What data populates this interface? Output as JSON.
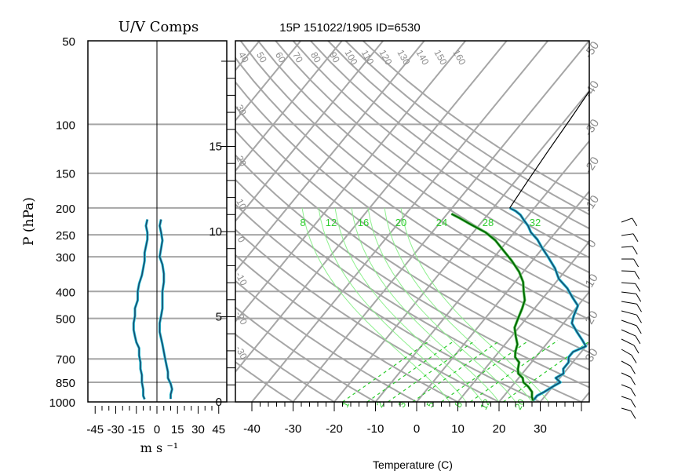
{
  "chart_data": [
    {
      "type": "line",
      "title": "U/V Comps",
      "xlabel": "m s ⁻¹",
      "ylabel": "P (hPa)",
      "x_ticks": [
        -45,
        -30,
        -15,
        0,
        15,
        30,
        45
      ],
      "x_tick_labels": [
        "-45",
        "-30",
        "-15",
        "0",
        "15",
        "30",
        "45"
      ],
      "y_ticks": [
        50,
        100,
        150,
        200,
        250,
        300,
        400,
        500,
        700,
        850,
        1000
      ],
      "y_tick_labels": [
        "50",
        "100",
        "150",
        "200",
        "250",
        "300",
        "400",
        "500",
        "700",
        "850",
        "1000"
      ],
      "y_scale": "log",
      "grid": true,
      "series": [
        {
          "color": "#1a4a6e",
          "points": [
            {
              "x": -9,
              "y": 978
            },
            {
              "x": -10,
              "y": 950
            },
            {
              "x": -10,
              "y": 900
            },
            {
              "x": -11,
              "y": 850
            },
            {
              "x": -11,
              "y": 800
            },
            {
              "x": -12,
              "y": 760
            },
            {
              "x": -12,
              "y": 720
            },
            {
              "x": -13,
              "y": 680
            },
            {
              "x": -13,
              "y": 640
            },
            {
              "x": -15,
              "y": 610
            },
            {
              "x": -16,
              "y": 580
            },
            {
              "x": -17,
              "y": 550
            },
            {
              "x": -17,
              "y": 520
            },
            {
              "x": -16,
              "y": 490
            },
            {
              "x": -16,
              "y": 460
            },
            {
              "x": -14,
              "y": 430
            },
            {
              "x": -14,
              "y": 400
            },
            {
              "x": -13,
              "y": 375
            },
            {
              "x": -11,
              "y": 350
            },
            {
              "x": -10,
              "y": 330
            },
            {
              "x": -9,
              "y": 310
            },
            {
              "x": -9,
              "y": 290
            },
            {
              "x": -8,
              "y": 275
            },
            {
              "x": -7,
              "y": 260
            },
            {
              "x": -7,
              "y": 245
            },
            {
              "x": -8,
              "y": 232
            },
            {
              "x": -7,
              "y": 220
            }
          ]
        },
        {
          "color": "#1a4a6e",
          "points": [
            {
              "x": 10,
              "y": 975
            },
            {
              "x": 10,
              "y": 940
            },
            {
              "x": 11,
              "y": 900
            },
            {
              "x": 10,
              "y": 860
            },
            {
              "x": 8,
              "y": 820
            },
            {
              "x": 8,
              "y": 780
            },
            {
              "x": 7,
              "y": 740
            },
            {
              "x": 6,
              "y": 700
            },
            {
              "x": 5,
              "y": 660
            },
            {
              "x": 4,
              "y": 620
            },
            {
              "x": 3,
              "y": 590
            },
            {
              "x": 2,
              "y": 560
            },
            {
              "x": 2,
              "y": 520
            },
            {
              "x": 3,
              "y": 490
            },
            {
              "x": 4,
              "y": 460
            },
            {
              "x": 4,
              "y": 430
            },
            {
              "x": 4,
              "y": 400
            },
            {
              "x": 5,
              "y": 370
            },
            {
              "x": 5,
              "y": 345
            },
            {
              "x": 4,
              "y": 320
            },
            {
              "x": 2,
              "y": 300
            },
            {
              "x": 3,
              "y": 280
            },
            {
              "x": 4,
              "y": 262
            },
            {
              "x": 3,
              "y": 245
            },
            {
              "x": 2,
              "y": 232
            },
            {
              "x": 3,
              "y": 220
            }
          ]
        }
      ]
    },
    {
      "type": "line",
      "title": "15P 151022/1905 ID=6530",
      "xlabel": "Temperature (C)",
      "x_ticks": [
        -40,
        -30,
        -20,
        -10,
        0,
        10,
        20,
        30
      ],
      "x_tick_labels": [
        "-40",
        "-30",
        "-20",
        "-10",
        "0",
        "10",
        "20",
        "30"
      ],
      "height_ticks_km": [
        0,
        5,
        10,
        15
      ],
      "height_tick_labels": [
        "0",
        "5",
        "10",
        "15"
      ],
      "isotherm_labels": [
        "-50",
        "-40",
        "-30",
        "-20",
        "-10",
        "0",
        "10",
        "20",
        "30"
      ],
      "dry_adiabat_labels": [
        "40",
        "50",
        "60",
        "70",
        "80",
        "90",
        "100",
        "110",
        "120",
        "130",
        "140",
        "150",
        "160"
      ],
      "mixing_ratio_labels": [
        "8",
        "12",
        "16",
        "20",
        "24",
        "28",
        "32"
      ],
      "bottom_mixing_ratio_labels": [
        "1",
        "2",
        "3",
        "5",
        "8",
        "12",
        "20"
      ],
      "left_adiabat_labels": [
        "30",
        "20",
        "10",
        "0",
        "-10",
        "-20",
        "-30"
      ],
      "grid": true,
      "series": [
        {
          "color": "#1a4a6e",
          "points": [
            {
              "t": 28,
              "p": 990
            },
            {
              "t": 28,
              "p": 950
            },
            {
              "t": 29,
              "p": 920
            },
            {
              "t": 30,
              "p": 880
            },
            {
              "t": 31,
              "p": 850
            },
            {
              "t": 29,
              "p": 820
            },
            {
              "t": 30,
              "p": 790
            },
            {
              "t": 29,
              "p": 760
            },
            {
              "t": 29,
              "p": 720
            },
            {
              "t": 28,
              "p": 690
            },
            {
              "t": 28,
              "p": 660
            },
            {
              "t": 30,
              "p": 630
            },
            {
              "t": 28,
              "p": 600
            },
            {
              "t": 25,
              "p": 560
            },
            {
              "t": 22,
              "p": 520
            },
            {
              "t": 21,
              "p": 490
            },
            {
              "t": 20,
              "p": 450
            },
            {
              "t": 17,
              "p": 420
            },
            {
              "t": 14,
              "p": 390
            },
            {
              "t": 10,
              "p": 360
            },
            {
              "t": 7,
              "p": 330
            },
            {
              "t": 3,
              "p": 300
            },
            {
              "t": 0,
              "p": 280
            },
            {
              "t": -3,
              "p": 260
            },
            {
              "t": -6,
              "p": 245
            },
            {
              "t": -8,
              "p": 232
            },
            {
              "t": -10,
              "p": 222
            },
            {
              "t": -12,
              "p": 212
            },
            {
              "t": -14,
              "p": 205
            },
            {
              "t": -16,
              "p": 200
            }
          ]
        },
        {
          "color": "#006400",
          "points": [
            {
              "t": 28,
              "p": 990
            },
            {
              "t": 27,
              "p": 960
            },
            {
              "t": 26,
              "p": 920
            },
            {
              "t": 24,
              "p": 880
            },
            {
              "t": 22,
              "p": 850
            },
            {
              "t": 21,
              "p": 820
            },
            {
              "t": 19,
              "p": 790
            },
            {
              "t": 18,
              "p": 760
            },
            {
              "t": 17,
              "p": 720
            },
            {
              "t": 15,
              "p": 690
            },
            {
              "t": 14,
              "p": 660
            },
            {
              "t": 13,
              "p": 620
            },
            {
              "t": 11,
              "p": 580
            },
            {
              "t": 9,
              "p": 540
            },
            {
              "t": 8,
              "p": 500
            },
            {
              "t": 7,
              "p": 460
            },
            {
              "t": 6,
              "p": 430
            },
            {
              "t": 4,
              "p": 400
            },
            {
              "t": 2,
              "p": 370
            },
            {
              "t": -1,
              "p": 340
            },
            {
              "t": -5,
              "p": 310
            },
            {
              "t": -9,
              "p": 285
            },
            {
              "t": -13,
              "p": 262
            },
            {
              "t": -17,
              "p": 245
            },
            {
              "t": -22,
              "p": 230
            },
            {
              "t": -26,
              "p": 218
            },
            {
              "t": -29,
              "p": 210
            }
          ]
        },
        {
          "color": "#000000",
          "points": [
            {
              "t": -16,
              "p": 200
            },
            {
              "t": -17,
              "p": 160
            },
            {
              "t": -18,
              "p": 125
            },
            {
              "t": -19,
              "p": 95
            },
            {
              "t": -20,
              "p": 74
            }
          ]
        }
      ]
    }
  ]
}
